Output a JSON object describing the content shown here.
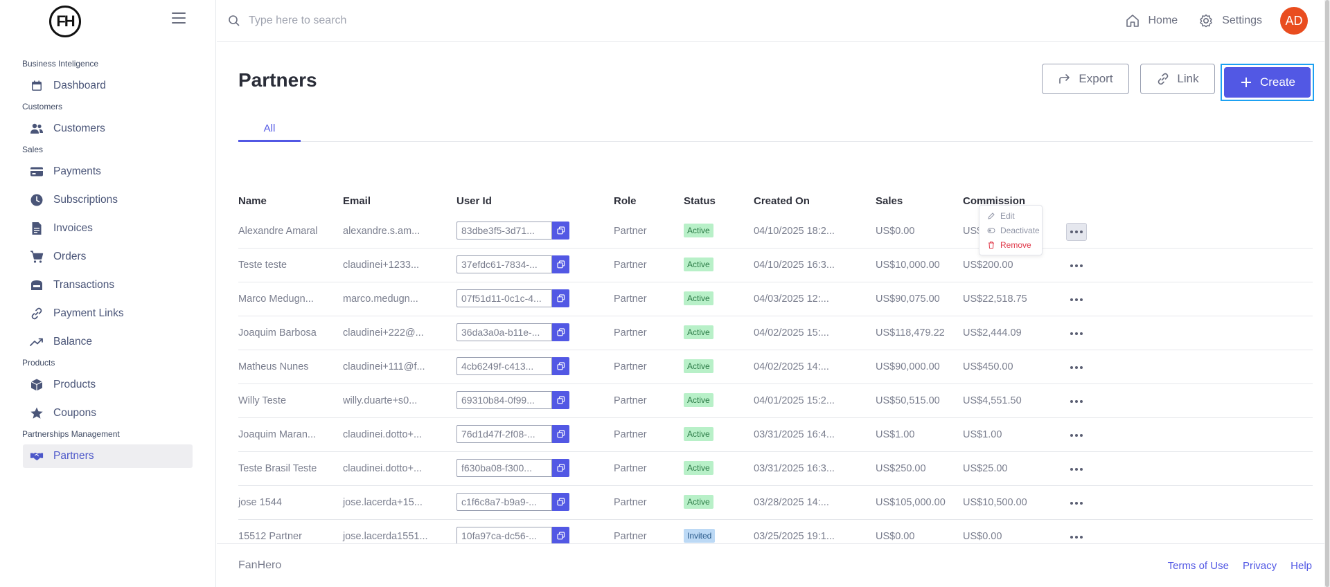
{
  "brand": {
    "logo_text": "FH"
  },
  "sidebar": {
    "sections": [
      {
        "title": "Business Inteligence",
        "items": [
          {
            "label": "Dashboard",
            "icon": "calendar-icon"
          }
        ]
      },
      {
        "title": "Customers",
        "items": [
          {
            "label": "Customers",
            "icon": "users-icon"
          }
        ]
      },
      {
        "title": "Sales",
        "items": [
          {
            "label": "Payments",
            "icon": "credit-card-icon"
          },
          {
            "label": "Subscriptions",
            "icon": "clock-icon"
          },
          {
            "label": "Invoices",
            "icon": "document-icon"
          },
          {
            "label": "Orders",
            "icon": "cart-icon"
          },
          {
            "label": "Transactions",
            "icon": "bank-icon"
          },
          {
            "label": "Payment Links",
            "icon": "link-icon"
          },
          {
            "label": "Balance",
            "icon": "trend-icon"
          }
        ]
      },
      {
        "title": "Products",
        "items": [
          {
            "label": "Products",
            "icon": "cube-icon"
          },
          {
            "label": "Coupons",
            "icon": "star-icon"
          }
        ]
      },
      {
        "title": "Partnerships Management",
        "items": [
          {
            "label": "Partners",
            "icon": "handshake-icon",
            "active": true
          }
        ]
      }
    ]
  },
  "topbar": {
    "search_placeholder": "Type here to search",
    "home_label": "Home",
    "settings_label": "Settings",
    "avatar_initials": "AD",
    "avatar_color": "#e94d1f"
  },
  "page": {
    "title": "Partners",
    "export_label": "Export",
    "link_label": "Link",
    "create_label": "Create",
    "tabs": [
      {
        "label": "All",
        "active": true
      }
    ]
  },
  "table": {
    "headers": [
      "Name",
      "Email",
      "User Id",
      "Role",
      "Status",
      "Created On",
      "Sales",
      "Commission"
    ],
    "rows": [
      {
        "name": "Alexandre Amaral",
        "email": "alexandre.s.am...",
        "user_id": "83dbe3f5-3d71...",
        "role": "Partner",
        "status": "Active",
        "created": "04/10/2025 18:2...",
        "sales": "US$0.00",
        "commission": "US$0.00"
      },
      {
        "name": "Teste teste",
        "email": "claudinei+1233...",
        "user_id": "37efdc61-7834-...",
        "role": "Partner",
        "status": "Active",
        "created": "04/10/2025 16:3...",
        "sales": "US$10,000.00",
        "commission": "US$200.00"
      },
      {
        "name": "Marco Medugn...",
        "email": "marco.medugn...",
        "user_id": "07f51d11-0c1c-4...",
        "role": "Partner",
        "status": "Active",
        "created": "04/03/2025 12:...",
        "sales": "US$90,075.00",
        "commission": "US$22,518.75"
      },
      {
        "name": "Joaquim Barbosa",
        "email": "claudinei+222@...",
        "user_id": "36da3a0a-b11e-...",
        "role": "Partner",
        "status": "Active",
        "created": "04/02/2025 15:...",
        "sales": "US$118,479.22",
        "commission": "US$2,444.09"
      },
      {
        "name": "Matheus Nunes",
        "email": "claudinei+111@f...",
        "user_id": "4cb6249f-c413...",
        "role": "Partner",
        "status": "Active",
        "created": "04/02/2025 14:...",
        "sales": "US$90,000.00",
        "commission": "US$450.00"
      },
      {
        "name": "Willy Teste",
        "email": "willy.duarte+s0...",
        "user_id": "69310b84-0f99...",
        "role": "Partner",
        "status": "Active",
        "created": "04/01/2025 15:2...",
        "sales": "US$50,515.00",
        "commission": "US$4,551.50"
      },
      {
        "name": "Joaquim Maran...",
        "email": "claudinei.dotto+...",
        "user_id": "76d1d47f-2f08-...",
        "role": "Partner",
        "status": "Active",
        "created": "03/31/2025 16:4...",
        "sales": "US$1.00",
        "commission": "US$1.00"
      },
      {
        "name": "Teste Brasil Teste",
        "email": "claudinei.dotto+...",
        "user_id": "f630ba08-f300...",
        "role": "Partner",
        "status": "Active",
        "created": "03/31/2025 16:3...",
        "sales": "US$250.00",
        "commission": "US$25.00"
      },
      {
        "name": "jose 1544",
        "email": "jose.lacerda+15...",
        "user_id": "c1f6c8a7-b9a9-...",
        "role": "Partner",
        "status": "Active",
        "created": "03/28/2025 14:...",
        "sales": "US$105,000.00",
        "commission": "US$10,500.00"
      },
      {
        "name": "15512 Partner",
        "email": "jose.lacerda1551...",
        "user_id": "10fa97ca-dc56-...",
        "role": "Partner",
        "status": "Invited",
        "created": "03/25/2025 19:1...",
        "sales": "US$0.00",
        "commission": "US$0.00"
      }
    ]
  },
  "row_menu": {
    "edit": "Edit",
    "deactivate": "Deactivate",
    "remove": "Remove"
  },
  "footer": {
    "brand": "FanHero",
    "links": [
      "Terms of Use",
      "Privacy",
      "Help"
    ]
  },
  "colors": {
    "accent": "#5258e4",
    "active_badge": "#b8f0c8",
    "invited_badge": "#bcd9f5",
    "danger": "#e0394a"
  }
}
